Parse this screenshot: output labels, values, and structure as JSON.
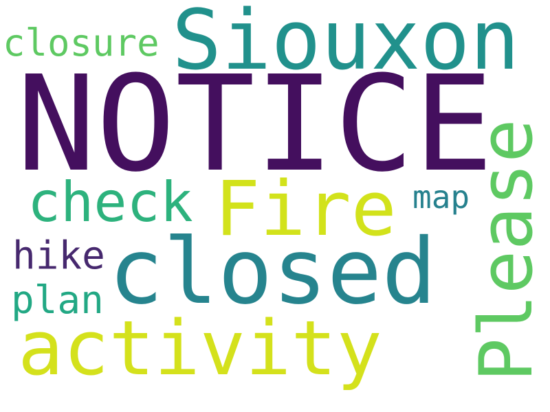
{
  "words": {
    "notice": {
      "text": "NOTICE",
      "color": "#440f5e"
    },
    "siouxon": {
      "text": "Siouxon",
      "color": "#21918c"
    },
    "closure": {
      "text": "closure",
      "color": "#5ec962"
    },
    "please": {
      "text": "Please",
      "color": "#5ec962"
    },
    "check": {
      "text": "check",
      "color": "#2db27d"
    },
    "fire": {
      "text": "Fire",
      "color": "#d2e21b"
    },
    "map": {
      "text": "map",
      "color": "#26818e"
    },
    "hike": {
      "text": "hike",
      "color": "#46286e"
    },
    "closed": {
      "text": "closed",
      "color": "#26848e"
    },
    "plan": {
      "text": "plan",
      "color": "#22a884"
    },
    "activity": {
      "text": "activity",
      "color": "#d4e11c"
    }
  }
}
